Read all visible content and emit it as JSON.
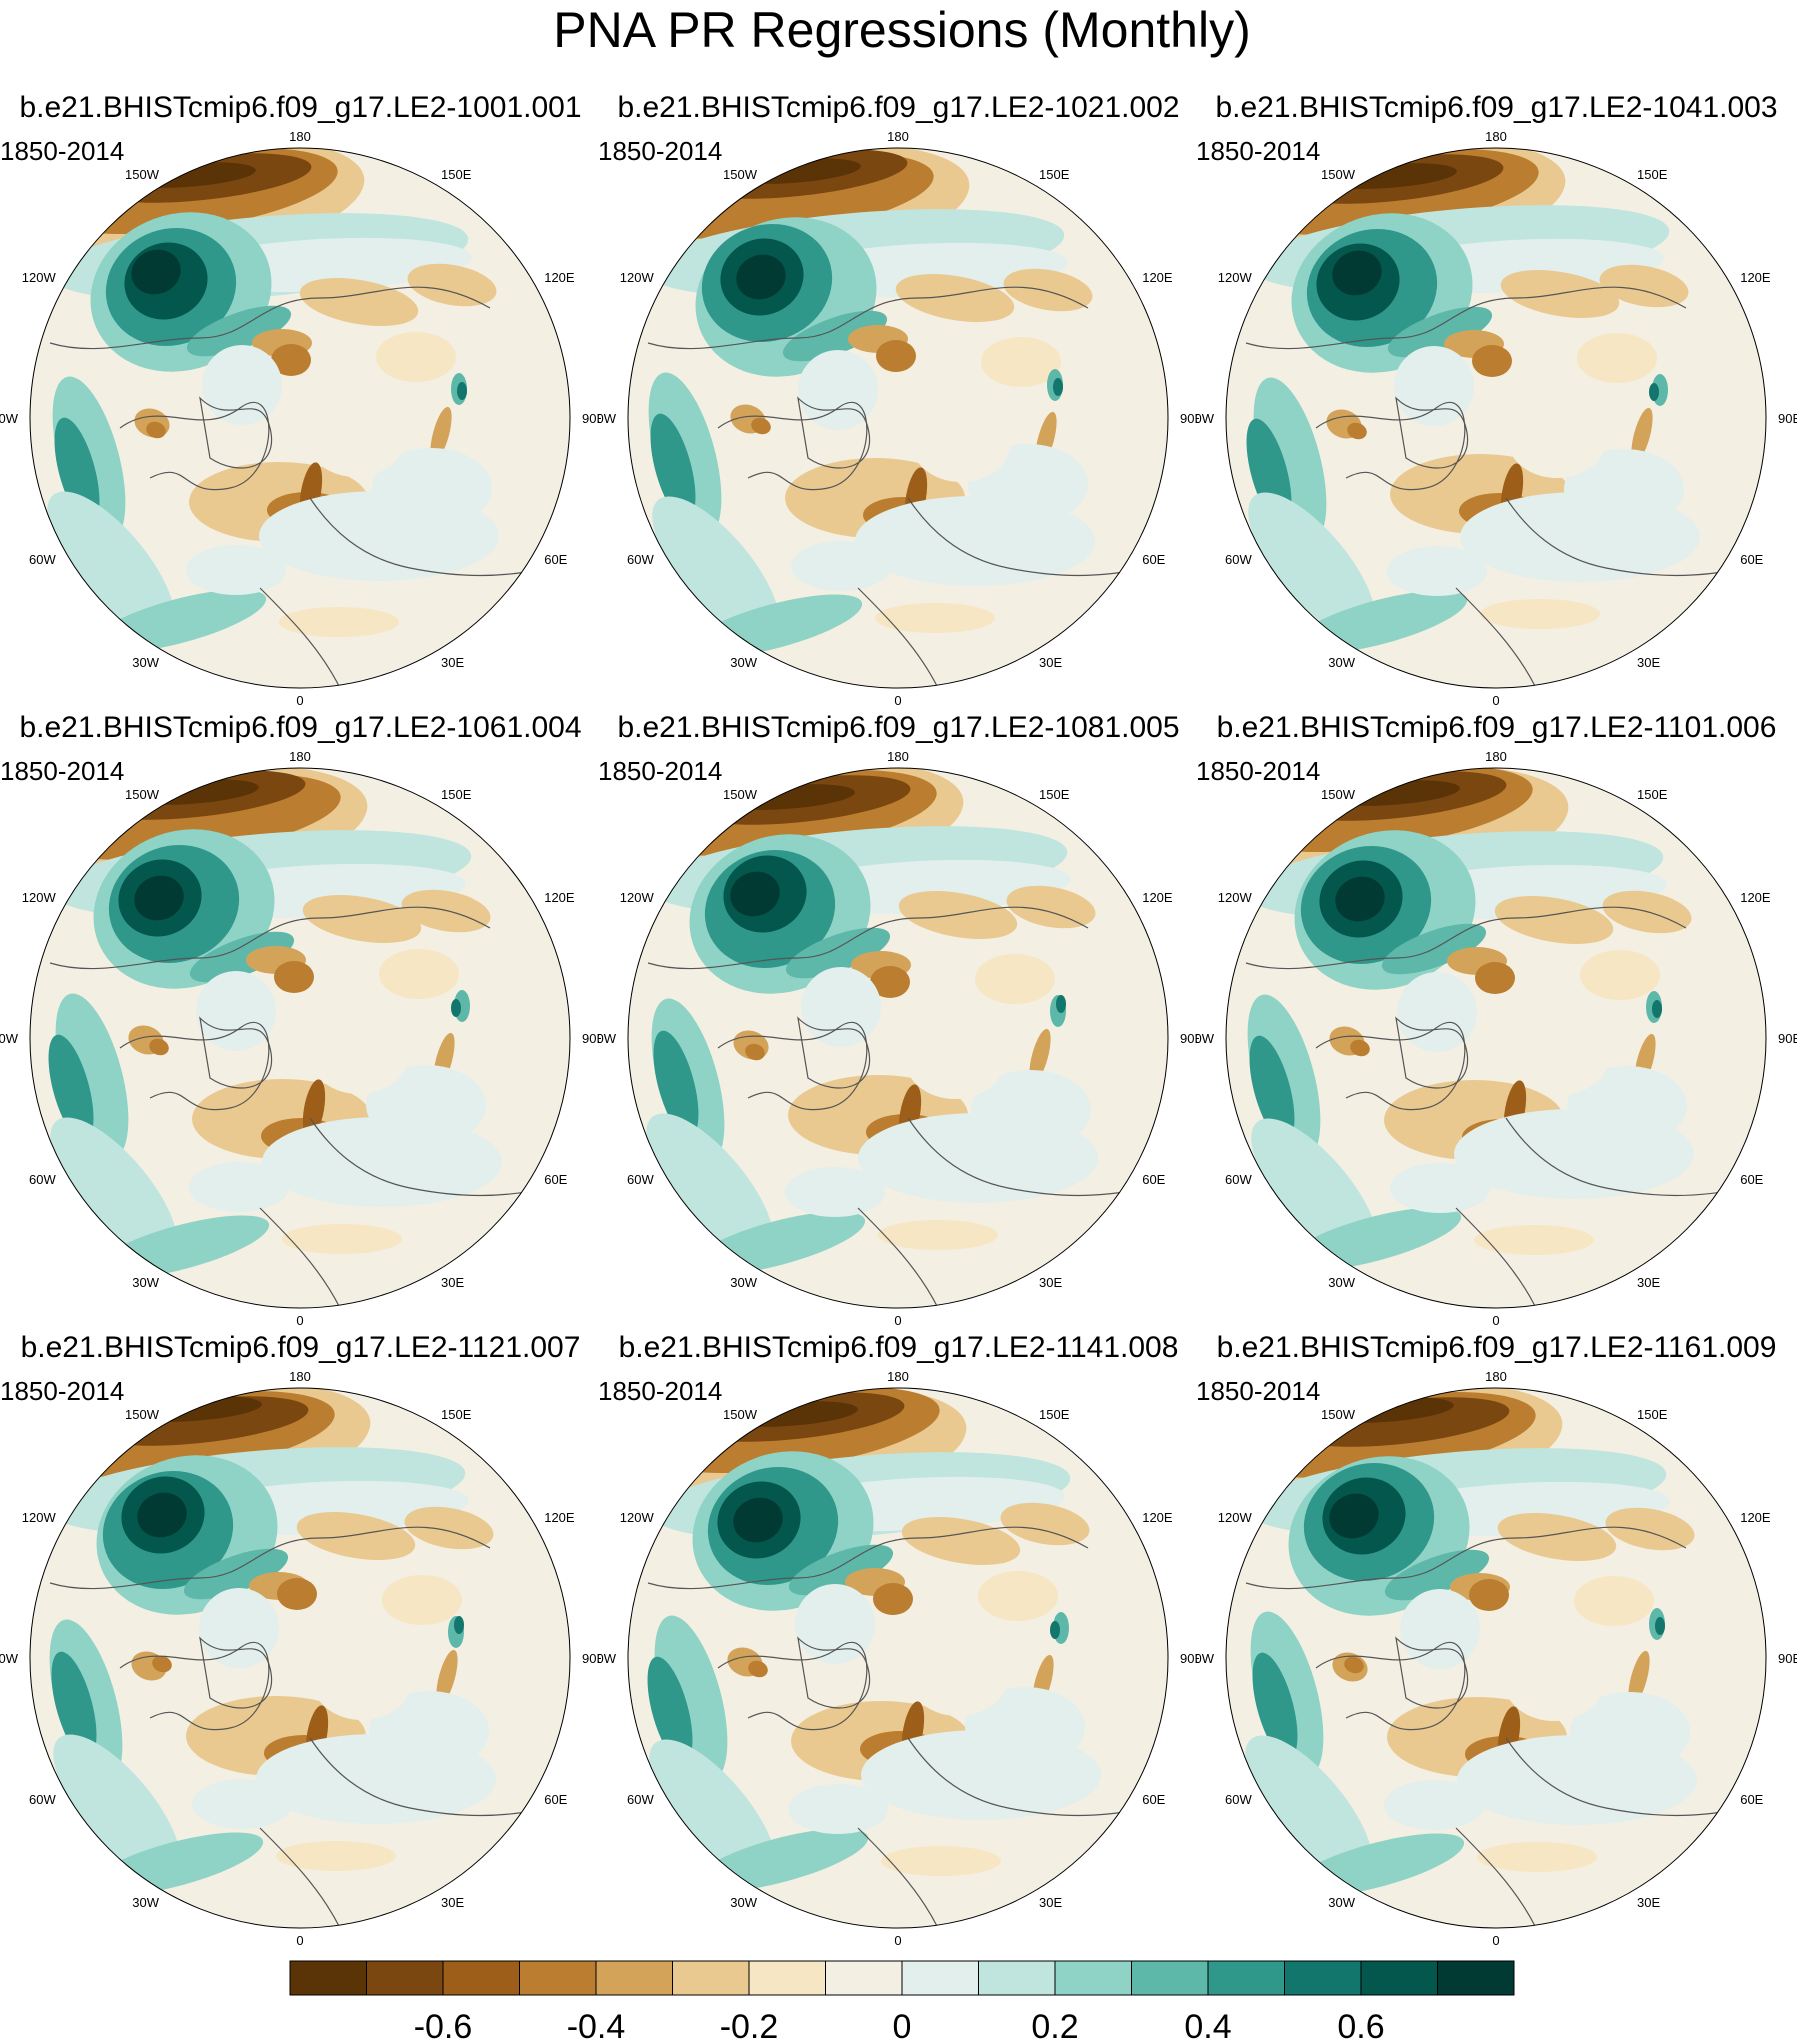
{
  "title": "PNA PR Regressions (Monthly)",
  "period_label": "1850-2014",
  "panels": [
    {
      "title": "b.e21.BHISTcmip6.f09_g17.LE2-1001.001"
    },
    {
      "title": "b.e21.BHISTcmip6.f09_g17.LE2-1021.002"
    },
    {
      "title": "b.e21.BHISTcmip6.f09_g17.LE2-1041.003"
    },
    {
      "title": "b.e21.BHISTcmip6.f09_g17.LE2-1061.004"
    },
    {
      "title": "b.e21.BHISTcmip6.f09_g17.LE2-1081.005"
    },
    {
      "title": "b.e21.BHISTcmip6.f09_g17.LE2-1101.006"
    },
    {
      "title": "b.e21.BHISTcmip6.f09_g17.LE2-1121.007"
    },
    {
      "title": "b.e21.BHISTcmip6.f09_g17.LE2-1141.008"
    },
    {
      "title": "b.e21.BHISTcmip6.f09_g17.LE2-1161.009"
    }
  ],
  "longitude_labels": [
    "180",
    "150E",
    "120E",
    "90E",
    "60E",
    "30E",
    "0",
    "30W",
    "60W",
    "90W",
    "120W",
    "150W"
  ],
  "colorbar": {
    "colors": [
      "#5a3306",
      "#7a4710",
      "#9c5e18",
      "#bb7d2f",
      "#d4a35a",
      "#e9c98f",
      "#f6e6c3",
      "#f4efe3",
      "#e2efed",
      "#bfe5de",
      "#8fd3c6",
      "#5db8a9",
      "#30978b",
      "#12766c",
      "#03574d",
      "#013a32"
    ],
    "boundaries": [
      -0.7,
      -0.6,
      -0.5,
      -0.4,
      -0.3,
      -0.2,
      -0.1,
      0,
      0.1,
      0.2,
      0.3,
      0.4,
      0.5,
      0.6,
      0.7
    ],
    "tick_labels": [
      "-0.6",
      "-0.4",
      "-0.2",
      "0",
      "0.2",
      "0.4",
      "0.6"
    ],
    "tick_values": [
      -0.6,
      -0.4,
      -0.2,
      0,
      0.2,
      0.4,
      0.6
    ]
  }
}
